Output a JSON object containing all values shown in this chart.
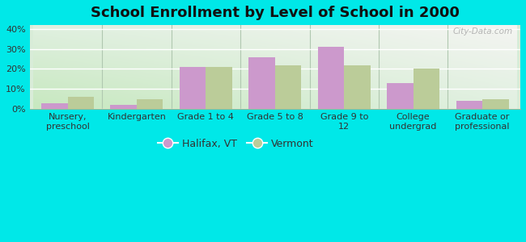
{
  "title": "School Enrollment by Level of School in 2000",
  "categories": [
    "Nursery,\npreschool",
    "Kindergarten",
    "Grade 1 to 4",
    "Grade 5 to 8",
    "Grade 9 to\n12",
    "College\nundergrad",
    "Graduate or\nprofessional"
  ],
  "halifax_values": [
    3.0,
    2.0,
    21.0,
    26.0,
    31.0,
    13.0,
    4.0
  ],
  "vermont_values": [
    6.0,
    5.0,
    21.0,
    22.0,
    22.0,
    20.0,
    5.0
  ],
  "halifax_color": "#cc99cc",
  "vermont_color": "#bbcc99",
  "background_outer": "#00e8e8",
  "grad_color_topleft": "#e0f0e0",
  "grad_color_topright": "#f5f5f0",
  "grad_color_bottomleft": "#c8e8c0",
  "grad_color_bottomright": "#e8f0e8",
  "ylabel_ticks": [
    "0%",
    "10%",
    "20%",
    "30%",
    "40%"
  ],
  "ytick_values": [
    0,
    10,
    20,
    30,
    40
  ],
  "ylim": [
    0,
    42
  ],
  "legend_halifax": "Halifax, VT",
  "legend_vermont": "Vermont",
  "watermark": "City-Data.com",
  "bar_width": 0.38,
  "title_fontsize": 13,
  "tick_fontsize": 8,
  "legend_fontsize": 9,
  "grid_color": "#ffffff",
  "separator_color": "#b0c8b0"
}
